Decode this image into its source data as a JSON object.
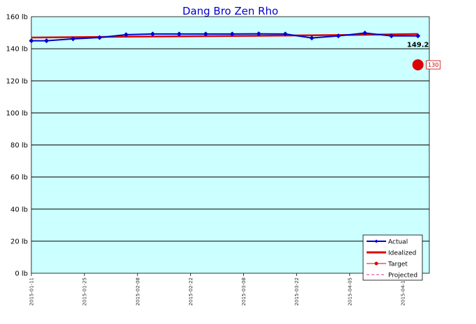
{
  "chart_data": {
    "type": "line",
    "title": "Dang Bro Zen Rho",
    "y_tick_labels": [
      "0 lb",
      "20 lb",
      "40 lb",
      "60 lb",
      "80 lb",
      "100 lb",
      "120 lb",
      "140 lb",
      "160 lb"
    ],
    "ylim": [
      0,
      160
    ],
    "xlim": [
      "2015-01-11",
      "2015-04-26"
    ],
    "x_tick_labels": [
      "2015-01-11",
      "2015-01-25",
      "2015-02-08",
      "2015-02-22",
      "2015-03-08",
      "2015-03-22",
      "2015-04-05",
      "2015-04-19"
    ],
    "grid": "horizontal",
    "background": "#ccffff",
    "legend_position": "bottom-right",
    "series": [
      {
        "name": "Actual",
        "color": "#0000cc",
        "x": [
          "2015-01-11",
          "2015-01-15",
          "2015-01-22",
          "2015-01-29",
          "2015-02-05",
          "2015-02-12",
          "2015-02-19",
          "2015-02-26",
          "2015-03-05",
          "2015-03-12",
          "2015-03-19",
          "2015-03-26",
          "2015-04-02",
          "2015-04-09",
          "2015-04-16",
          "2015-04-23"
        ],
        "values": [
          145.0,
          145.0,
          146.2,
          147.0,
          148.8,
          149.2,
          149.2,
          149.2,
          149.2,
          149.3,
          149.2,
          146.7,
          148.0,
          149.8,
          148.0,
          148.0
        ]
      },
      {
        "name": "Idealized",
        "color": "#dd0000",
        "x": [
          "2015-01-11",
          "2015-02-08",
          "2015-03-08",
          "2015-04-05",
          "2015-04-23"
        ],
        "values": [
          147.0,
          147.6,
          148.0,
          148.6,
          149.2
        ]
      },
      {
        "name": "Target",
        "color": "#dd0000",
        "x": [
          "2015-04-23"
        ],
        "values": [
          130
        ]
      },
      {
        "name": "Projected",
        "color": "#cc3399",
        "x": [],
        "values": []
      }
    ],
    "annotations": {
      "last_value_label": "149.2",
      "target_label": "130"
    }
  }
}
